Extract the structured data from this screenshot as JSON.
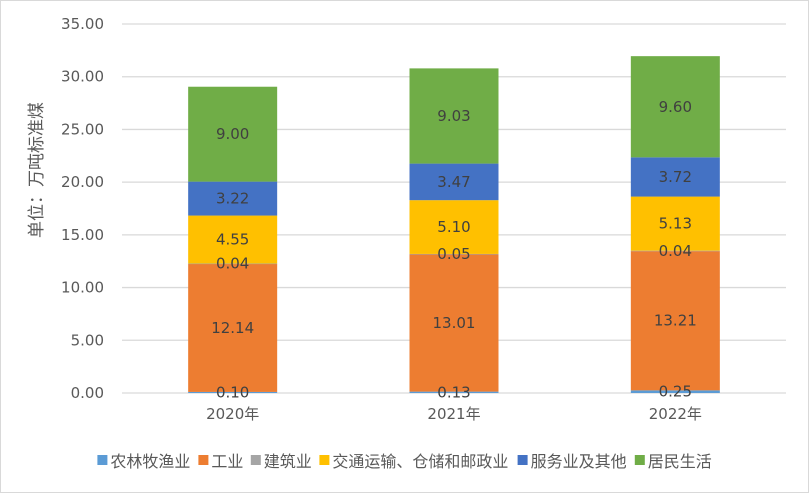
{
  "chart_data": {
    "type": "bar",
    "stacked": true,
    "title": "",
    "xlabel": "",
    "ylabel": "单位：万吨标准煤",
    "ylim": [
      0,
      35
    ],
    "yticks": [
      "0.00",
      "5.00",
      "10.00",
      "15.00",
      "20.00",
      "25.00",
      "30.00",
      "35.00"
    ],
    "grid": true,
    "legend_position": "bottom",
    "categories": [
      "2020年",
      "2021年",
      "2022年"
    ],
    "series": [
      {
        "name": "农林牧渔业",
        "color": "#5B9BD5",
        "values": [
          0.1,
          0.13,
          0.25
        ]
      },
      {
        "name": "工业",
        "color": "#ED7D31",
        "values": [
          12.14,
          13.01,
          13.21
        ]
      },
      {
        "name": "建筑业",
        "color": "#A5A5A5",
        "values": [
          0.04,
          0.05,
          0.04
        ]
      },
      {
        "name": "交通运输、仓储和邮政业",
        "color": "#FFC000",
        "values": [
          4.55,
          5.1,
          5.13
        ]
      },
      {
        "name": "服务业及其他",
        "color": "#4472C4",
        "values": [
          3.22,
          3.47,
          3.72
        ]
      },
      {
        "name": "居民生活",
        "color": "#70AD47",
        "values": [
          9.0,
          9.03,
          9.6
        ]
      }
    ]
  }
}
